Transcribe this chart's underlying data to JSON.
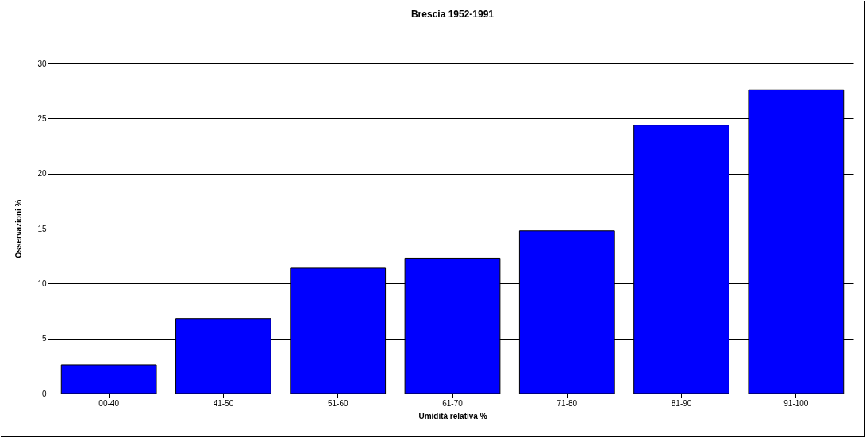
{
  "chart_data": {
    "type": "bar",
    "title": "Brescia 1952-1991",
    "xlabel": "Umidità relativa %",
    "ylabel": "Osservazioni %",
    "categories": [
      "00-40",
      "41-50",
      "51-60",
      "61-70",
      "71-80",
      "81-90",
      "91-100"
    ],
    "values": [
      2.6,
      6.8,
      11.4,
      12.3,
      14.8,
      24.4,
      27.6
    ],
    "color": "#0000ff",
    "ylim": [
      0,
      30
    ],
    "yticks": [
      0,
      5,
      10,
      15,
      20,
      25,
      30
    ],
    "grid": "y"
  }
}
